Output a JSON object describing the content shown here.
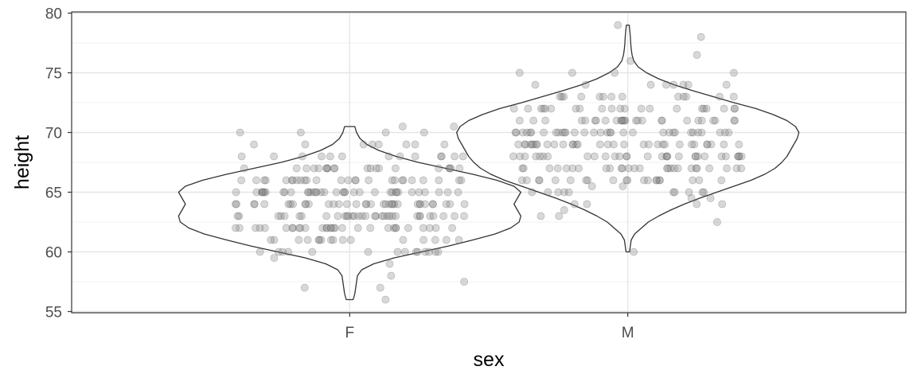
{
  "chart_data": {
    "type": "violin",
    "xlabel": "sex",
    "ylabel": "height",
    "categories": [
      "F",
      "M"
    ],
    "ylim": [
      54.9,
      80.1
    ],
    "yticks": [
      55,
      60,
      65,
      70,
      75,
      80
    ],
    "ytick_labels": [
      "55",
      "60",
      "65",
      "70",
      "75",
      "80"
    ],
    "grid": true,
    "theme": "bw",
    "violin_outline_color": "#333333",
    "violin_fill": "none",
    "point_color": "#7f7f7f",
    "point_alpha": 0.3,
    "series": [
      {
        "category": "F",
        "violin_min": 56,
        "violin_max": 70.5,
        "sample_size_approx": 238,
        "density_profile": [
          [
            56.0,
            0.02
          ],
          [
            56.5,
            0.03
          ],
          [
            57.0,
            0.035
          ],
          [
            57.5,
            0.04
          ],
          [
            58.0,
            0.045
          ],
          [
            58.5,
            0.07
          ],
          [
            59.0,
            0.14
          ],
          [
            59.5,
            0.26
          ],
          [
            60.0,
            0.42
          ],
          [
            60.5,
            0.58
          ],
          [
            61.0,
            0.72
          ],
          [
            61.5,
            0.85
          ],
          [
            62.0,
            0.94
          ],
          [
            62.5,
            0.99
          ],
          [
            63.0,
            1.0
          ],
          [
            63.5,
            0.98
          ],
          [
            64.0,
            0.96
          ],
          [
            64.5,
            0.98
          ],
          [
            65.0,
            1.0
          ],
          [
            65.5,
            0.96
          ],
          [
            66.0,
            0.86
          ],
          [
            66.5,
            0.72
          ],
          [
            67.0,
            0.56
          ],
          [
            67.5,
            0.4
          ],
          [
            68.0,
            0.27
          ],
          [
            68.5,
            0.17
          ],
          [
            69.0,
            0.1
          ],
          [
            69.5,
            0.06
          ],
          [
            70.0,
            0.04
          ],
          [
            70.5,
            0.03
          ]
        ],
        "heights": [
          56,
          57,
          57,
          57.5,
          58,
          59,
          59.5,
          60,
          60,
          60,
          60,
          60,
          60,
          60,
          60,
          60,
          60,
          60,
          60,
          60,
          60,
          61,
          61,
          61,
          61,
          61,
          61,
          61,
          61,
          61,
          61,
          61,
          61,
          61,
          61,
          61,
          61,
          62,
          62,
          62,
          62,
          62,
          62,
          62,
          62,
          62,
          62,
          62,
          62,
          62,
          62,
          62,
          62,
          62,
          62,
          62,
          62,
          62,
          62,
          62,
          62,
          62,
          62,
          62,
          62,
          62,
          62,
          63,
          63,
          63,
          63,
          63,
          63,
          63,
          63,
          63,
          63,
          63,
          63,
          63,
          63,
          63,
          63,
          63,
          63,
          63,
          63,
          63,
          63,
          63,
          63,
          63,
          63,
          63,
          63,
          63,
          63,
          63,
          63,
          63,
          64,
          64,
          64,
          64,
          64,
          64,
          64,
          64,
          64,
          64,
          64,
          64,
          64,
          64,
          64,
          64,
          64,
          64,
          64,
          64,
          64,
          64,
          64,
          64,
          64,
          64,
          64,
          64,
          64,
          64,
          64,
          64,
          64,
          64,
          64,
          65,
          65,
          65,
          65,
          65,
          65,
          65,
          65,
          65,
          65,
          65,
          65,
          65,
          65,
          65,
          65,
          65,
          65,
          65,
          65,
          65,
          65,
          65,
          65,
          65,
          65,
          65,
          65,
          65,
          65,
          65,
          65,
          65,
          65,
          65,
          65,
          66,
          66,
          66,
          66,
          66,
          66,
          66,
          66,
          66,
          66,
          66,
          66,
          66,
          66,
          66,
          66,
          66,
          66,
          66,
          66,
          66,
          66,
          66,
          66,
          66,
          66,
          67,
          67,
          67,
          67,
          67,
          67,
          67,
          67,
          67,
          67,
          67,
          67,
          67,
          67,
          67,
          67,
          67,
          67,
          67,
          67,
          68,
          68,
          68,
          68,
          68,
          68,
          68,
          68,
          68,
          68,
          68,
          68,
          68,
          69,
          69,
          69,
          69,
          69,
          69,
          69,
          69,
          70,
          70,
          70,
          70,
          70.5,
          70.5
        ]
      },
      {
        "category": "M",
        "violin_min": 60,
        "violin_max": 79,
        "sample_size_approx": 238,
        "density_profile": [
          [
            60.0,
            0.01
          ],
          [
            60.5,
            0.015
          ],
          [
            61.0,
            0.02
          ],
          [
            61.5,
            0.04
          ],
          [
            62.0,
            0.08
          ],
          [
            62.5,
            0.12
          ],
          [
            63.0,
            0.18
          ],
          [
            63.5,
            0.25
          ],
          [
            64.0,
            0.33
          ],
          [
            64.5,
            0.42
          ],
          [
            65.0,
            0.52
          ],
          [
            65.5,
            0.62
          ],
          [
            66.0,
            0.72
          ],
          [
            66.5,
            0.8
          ],
          [
            67.0,
            0.86
          ],
          [
            67.5,
            0.9
          ],
          [
            68.0,
            0.93
          ],
          [
            68.5,
            0.95
          ],
          [
            69.0,
            0.97
          ],
          [
            69.5,
            0.99
          ],
          [
            70.0,
            1.0
          ],
          [
            70.5,
            0.98
          ],
          [
            71.0,
            0.93
          ],
          [
            71.5,
            0.85
          ],
          [
            72.0,
            0.75
          ],
          [
            72.5,
            0.62
          ],
          [
            73.0,
            0.5
          ],
          [
            73.5,
            0.38
          ],
          [
            74.0,
            0.27
          ],
          [
            74.5,
            0.18
          ],
          [
            75.0,
            0.11
          ],
          [
            75.5,
            0.06
          ],
          [
            76.0,
            0.035
          ],
          [
            76.5,
            0.025
          ],
          [
            77.0,
            0.02
          ],
          [
            77.5,
            0.017
          ],
          [
            78.0,
            0.015
          ],
          [
            78.5,
            0.012
          ],
          [
            79.0,
            0.008
          ]
        ],
        "heights": [
          60,
          62.5,
          63,
          63,
          63.5,
          64,
          64,
          64,
          64,
          64.5,
          64.5,
          65,
          65,
          65,
          65,
          65,
          65,
          65,
          65,
          65,
          65,
          65.5,
          65.5,
          66,
          66,
          66,
          66,
          66,
          66,
          66,
          66,
          66,
          66,
          66,
          66,
          66,
          66,
          66,
          66,
          66,
          66,
          66,
          66,
          67,
          67,
          67,
          67,
          67,
          67,
          67,
          67,
          67,
          67,
          67,
          67,
          67,
          67,
          67,
          67,
          67,
          67,
          67,
          67,
          67,
          67,
          67,
          67,
          67,
          67,
          68,
          68,
          68,
          68,
          68,
          68,
          68,
          68,
          68,
          68,
          68,
          68,
          68,
          68,
          68,
          68,
          68,
          68,
          68,
          68,
          68,
          68,
          68,
          68,
          68,
          68,
          68,
          68,
          68,
          68,
          69,
          69,
          69,
          69,
          69,
          69,
          69,
          69,
          69,
          69,
          69,
          69,
          69,
          69,
          69,
          69,
          69,
          69,
          69,
          69,
          69,
          69,
          69,
          69,
          69,
          69,
          69,
          69,
          69,
          69,
          69,
          69,
          70,
          70,
          70,
          70,
          70,
          70,
          70,
          70,
          70,
          70,
          70,
          70,
          70,
          70,
          70,
          70,
          70,
          70,
          70,
          70,
          70,
          70,
          70,
          70,
          70,
          70,
          70,
          70,
          70,
          70,
          70,
          70,
          71,
          71,
          71,
          71,
          71,
          71,
          71,
          71,
          71,
          71,
          71,
          71,
          71,
          71,
          71,
          71,
          71,
          71,
          71,
          71,
          71,
          71,
          71,
          71,
          71,
          71,
          72,
          72,
          72,
          72,
          72,
          72,
          72,
          72,
          72,
          72,
          72,
          72,
          72,
          72,
          72,
          72,
          72,
          72,
          72,
          72,
          72,
          73,
          73,
          73,
          73,
          73,
          73,
          73,
          73,
          73,
          73,
          73,
          73,
          73,
          74,
          74,
          74,
          74,
          74,
          74,
          74,
          74,
          75,
          75,
          75,
          75,
          76,
          76.5,
          78,
          79
        ]
      }
    ]
  }
}
